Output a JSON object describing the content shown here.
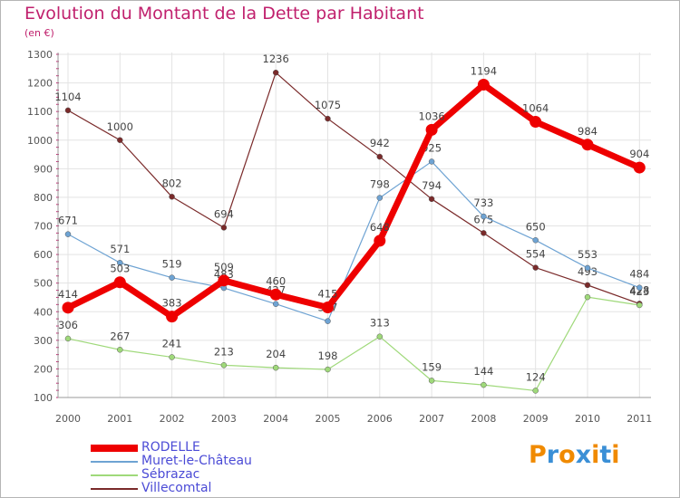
{
  "title": "Evolution du Montant de la Dette par Habitant",
  "subtitle": "(en €)",
  "logo": {
    "text": "Proxiti",
    "colors": [
      "#f08a00",
      "#3a8fd6",
      "#f08a00",
      "#3a8fd6",
      "#f08a00",
      "#3a8fd6",
      "#f08a00"
    ]
  },
  "chart_data": {
    "type": "line",
    "title": "Evolution du Montant de la Dette par Habitant",
    "subtitle": "(en €)",
    "xlabel": "",
    "ylabel": "",
    "x": [
      "2000",
      "2001",
      "2002",
      "2003",
      "2004",
      "2005",
      "2006",
      "2007",
      "2008",
      "2009",
      "2010",
      "2011"
    ],
    "ylim": [
      100,
      1300
    ],
    "yticks": [
      100,
      200,
      300,
      400,
      500,
      600,
      700,
      800,
      900,
      1000,
      1100,
      1200,
      1300
    ],
    "grid": true,
    "legend_position": "bottom-left",
    "series": [
      {
        "name": "Villecomtal",
        "color": "#7a2a2a",
        "values": [
          1104,
          1000,
          802,
          694,
          1236,
          1075,
          942,
          794,
          675,
          554,
          493,
          428
        ],
        "labels": [
          "1104",
          "1000",
          "802",
          "694",
          "1236",
          "1075",
          "942",
          "794",
          "675",
          "554",
          "493",
          "428"
        ]
      },
      {
        "name": "Sébrazac",
        "color": "#9fd97a",
        "values": [
          306,
          267,
          241,
          213,
          204,
          198,
          313,
          159,
          144,
          124,
          451,
          423
        ],
        "labels": [
          "306",
          "267",
          "241",
          "213",
          "204",
          "198",
          "313",
          "159",
          "144",
          "124",
          "",
          "423"
        ]
      },
      {
        "name": "Muret-le-Château",
        "color": "#6ea3d3",
        "values": [
          671,
          571,
          519,
          483,
          427,
          367,
          798,
          925,
          733,
          650,
          553,
          484
        ],
        "labels": [
          "671",
          "571",
          "519",
          "483",
          "427",
          "367",
          "798",
          "925",
          "733",
          "650",
          "553",
          "484"
        ]
      },
      {
        "name": "RODELLE",
        "color": "#ee0000",
        "values": [
          414,
          503,
          383,
          509,
          460,
          415,
          648,
          1036,
          1194,
          1064,
          984,
          904
        ],
        "labels": [
          "414",
          "503",
          "383",
          "509",
          "460",
          "415",
          "648",
          "1036",
          "1194",
          "1064",
          "984",
          "904"
        ]
      }
    ]
  }
}
